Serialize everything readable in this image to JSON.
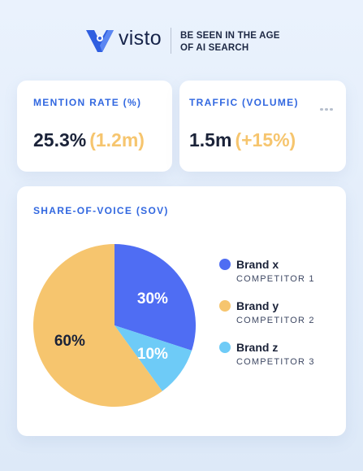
{
  "brand": {
    "name": "visto",
    "tagline_line1": "BE SEEN IN THE AGE",
    "tagline_line2": "OF AI SEARCH",
    "accent": "#3268e0"
  },
  "cards": {
    "mention": {
      "label": "MENTION RATE (%)",
      "value": "25.3%",
      "sub": "(1.2m)"
    },
    "traffic": {
      "label": "TRAFFIC (VOLUME)",
      "value": "1.5m",
      "sub": "(+15%)",
      "menu_icon": "more-horizontal-icon"
    }
  },
  "chart_data": {
    "type": "pie",
    "title": "SHARE-OF-VOICE (SOV)",
    "slices": [
      {
        "name": "Brand x",
        "sublabel": "COMPETITOR 1",
        "value": 30,
        "label": "30%",
        "color": "#4f6df3"
      },
      {
        "name": "Brand z",
        "sublabel": "COMPETITOR 3",
        "value": 10,
        "label": "10%",
        "color": "#6ecbf7"
      },
      {
        "name": "Brand y",
        "sublabel": "COMPETITOR 2",
        "value": 60,
        "label": "60%",
        "color": "#f6c56e"
      }
    ],
    "legend_order": [
      0,
      2,
      1
    ],
    "legend_position": "right"
  }
}
